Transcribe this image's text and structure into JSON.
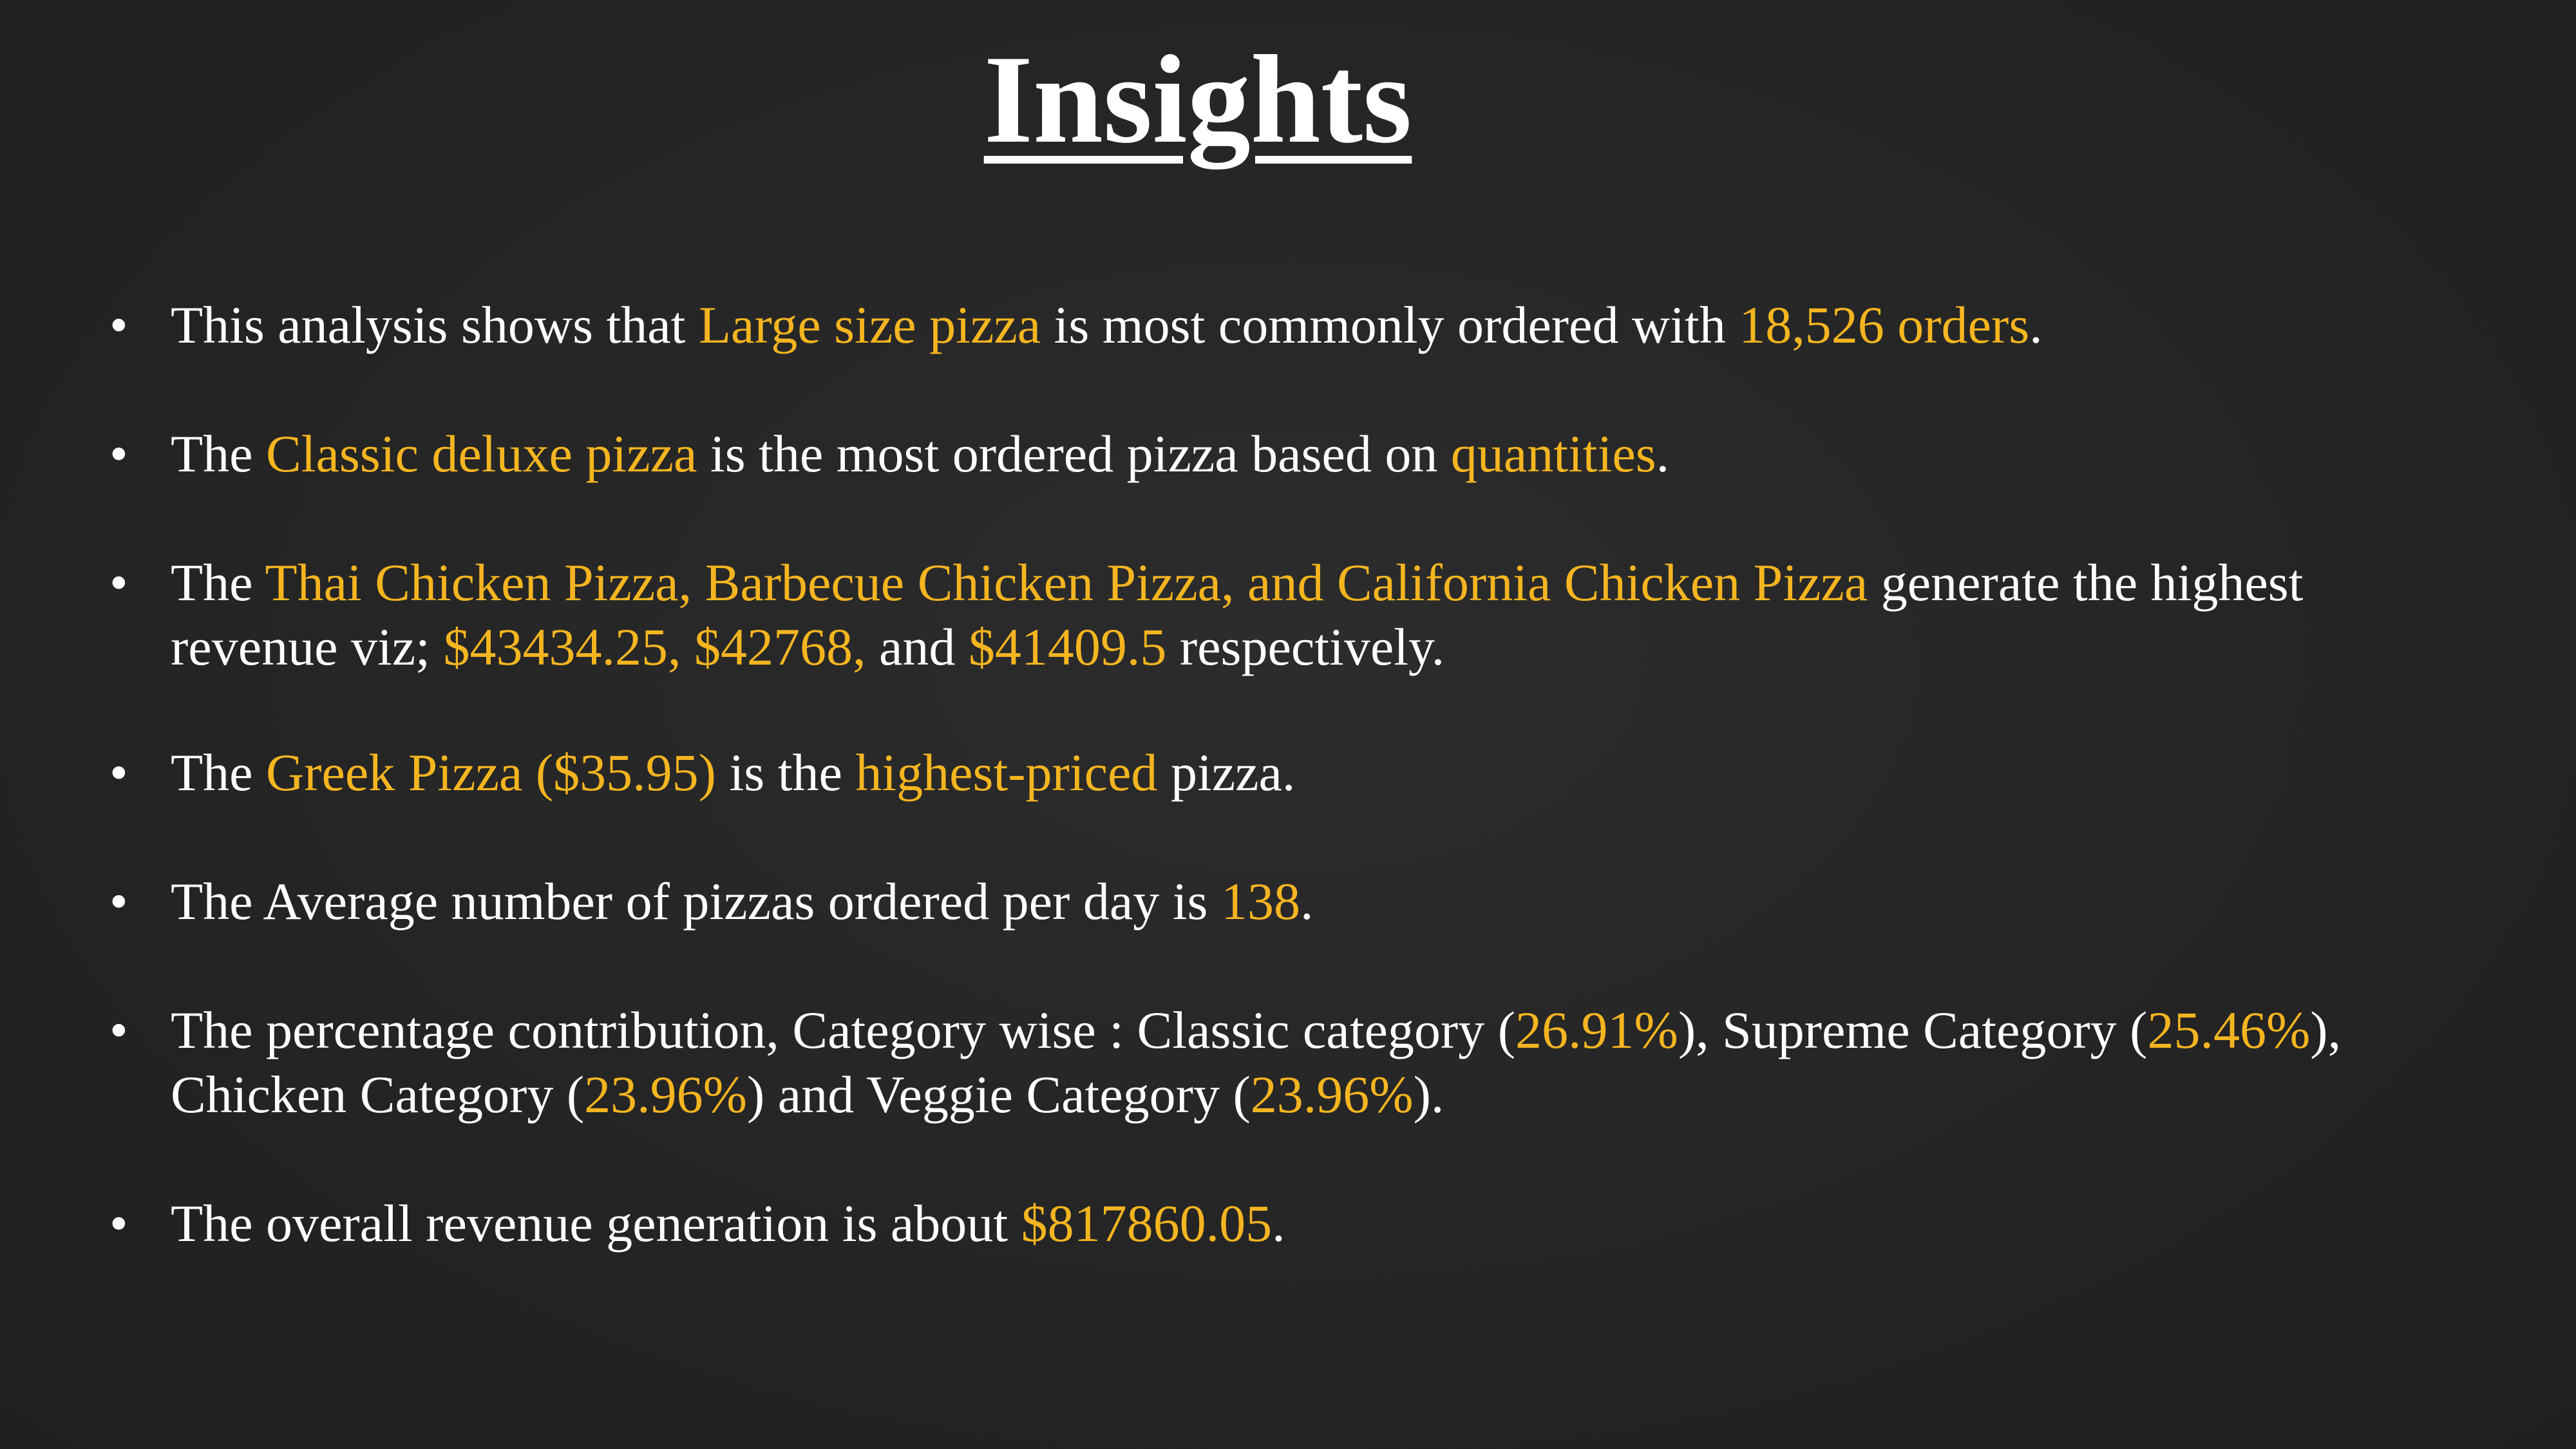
{
  "title": "Insights",
  "colors": {
    "background": "#242424",
    "text": "#ffffff",
    "highlight": "#f5b520"
  },
  "bullets": [
    {
      "lines": [
        [
          {
            "text": "This analysis shows that ",
            "hl": false
          },
          {
            "text": "Large size pizza",
            "hl": true
          },
          {
            "text": " is most commonly ordered with ",
            "hl": false
          },
          {
            "text": "18,526 orders",
            "hl": true
          },
          {
            "text": ".",
            "hl": false
          }
        ]
      ]
    },
    {
      "lines": [
        [
          {
            "text": "The ",
            "hl": false
          },
          {
            "text": "Classic deluxe pizza",
            "hl": true
          },
          {
            "text": " is the most ordered pizza based on ",
            "hl": false
          },
          {
            "text": "quantities",
            "hl": true
          },
          {
            "text": ".",
            "hl": false
          }
        ]
      ]
    },
    {
      "lines": [
        [
          {
            "text": "The ",
            "hl": false
          },
          {
            "text": "Thai Chicken Pizza, Barbecue Chicken Pizza, and California Chicken Pizza",
            "hl": true
          },
          {
            "text": " generate the highest",
            "hl": false
          }
        ],
        [
          {
            "text": "revenue viz; ",
            "hl": false
          },
          {
            "text": "$43434.25, $42768,",
            "hl": true
          },
          {
            "text": " and ",
            "hl": false
          },
          {
            "text": "$41409.5",
            "hl": true
          },
          {
            "text": " respectively.",
            "hl": false
          }
        ]
      ]
    },
    {
      "lines": [
        [
          {
            "text": "The ",
            "hl": false
          },
          {
            "text": "Greek Pizza ($35.95)",
            "hl": true
          },
          {
            "text": " is the ",
            "hl": false
          },
          {
            "text": "highest-priced",
            "hl": true
          },
          {
            "text": " pizza.",
            "hl": false
          }
        ]
      ]
    },
    {
      "lines": [
        [
          {
            "text": "The Average number of pizzas ordered per day is ",
            "hl": false
          },
          {
            "text": "138",
            "hl": true
          },
          {
            "text": ".",
            "hl": false
          }
        ]
      ]
    },
    {
      "lines": [
        [
          {
            "text": "The percentage contribution, Category wise : Classic category (",
            "hl": false
          },
          {
            "text": "26.91%",
            "hl": true
          },
          {
            "text": "), Supreme Category (",
            "hl": false
          },
          {
            "text": "25.46%",
            "hl": true
          },
          {
            "text": "),",
            "hl": false
          }
        ],
        [
          {
            "text": "Chicken Category (",
            "hl": false
          },
          {
            "text": "23.96%",
            "hl": true
          },
          {
            "text": ") and Veggie Category (",
            "hl": false
          },
          {
            "text": "23.96%",
            "hl": true
          },
          {
            "text": ").",
            "hl": false
          }
        ]
      ]
    },
    {
      "lines": [
        [
          {
            "text": "The overall revenue generation is about ",
            "hl": false
          },
          {
            "text": "$817860.05",
            "hl": true
          },
          {
            "text": ".",
            "hl": false
          }
        ]
      ]
    }
  ]
}
